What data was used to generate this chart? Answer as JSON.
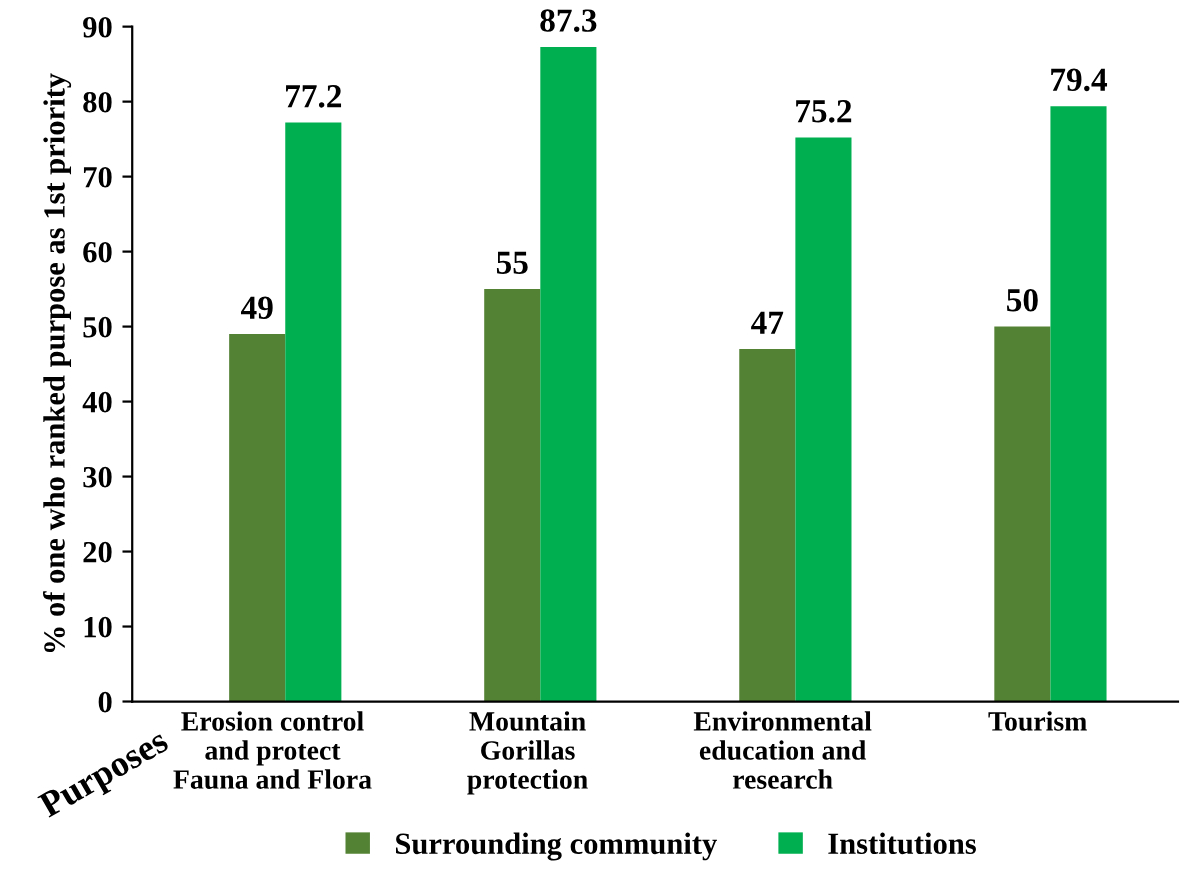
{
  "chart_data": {
    "type": "bar",
    "ylabel": "% of one who ranked purpose as 1st priority",
    "xlabel": "Purposes",
    "categories": [
      "Erosion control\nand protect\nFauna and Flora",
      "Mountain\nGorillas\nprotection",
      "Environmental\neducation and\nresearch",
      "Tourism"
    ],
    "series": [
      {
        "name": "Surrounding community",
        "color": "#548235",
        "values": [
          49,
          55,
          47,
          50
        ]
      },
      {
        "name": "Institutions",
        "color": "#00b050",
        "values": [
          77.2,
          87.3,
          75.2,
          79.4
        ]
      }
    ],
    "ylim": [
      0,
      90
    ],
    "yticks": [
      0,
      10,
      20,
      30,
      40,
      50,
      60,
      70,
      80,
      90
    ],
    "grid": false,
    "legend": "bottom",
    "data_labels": true
  }
}
